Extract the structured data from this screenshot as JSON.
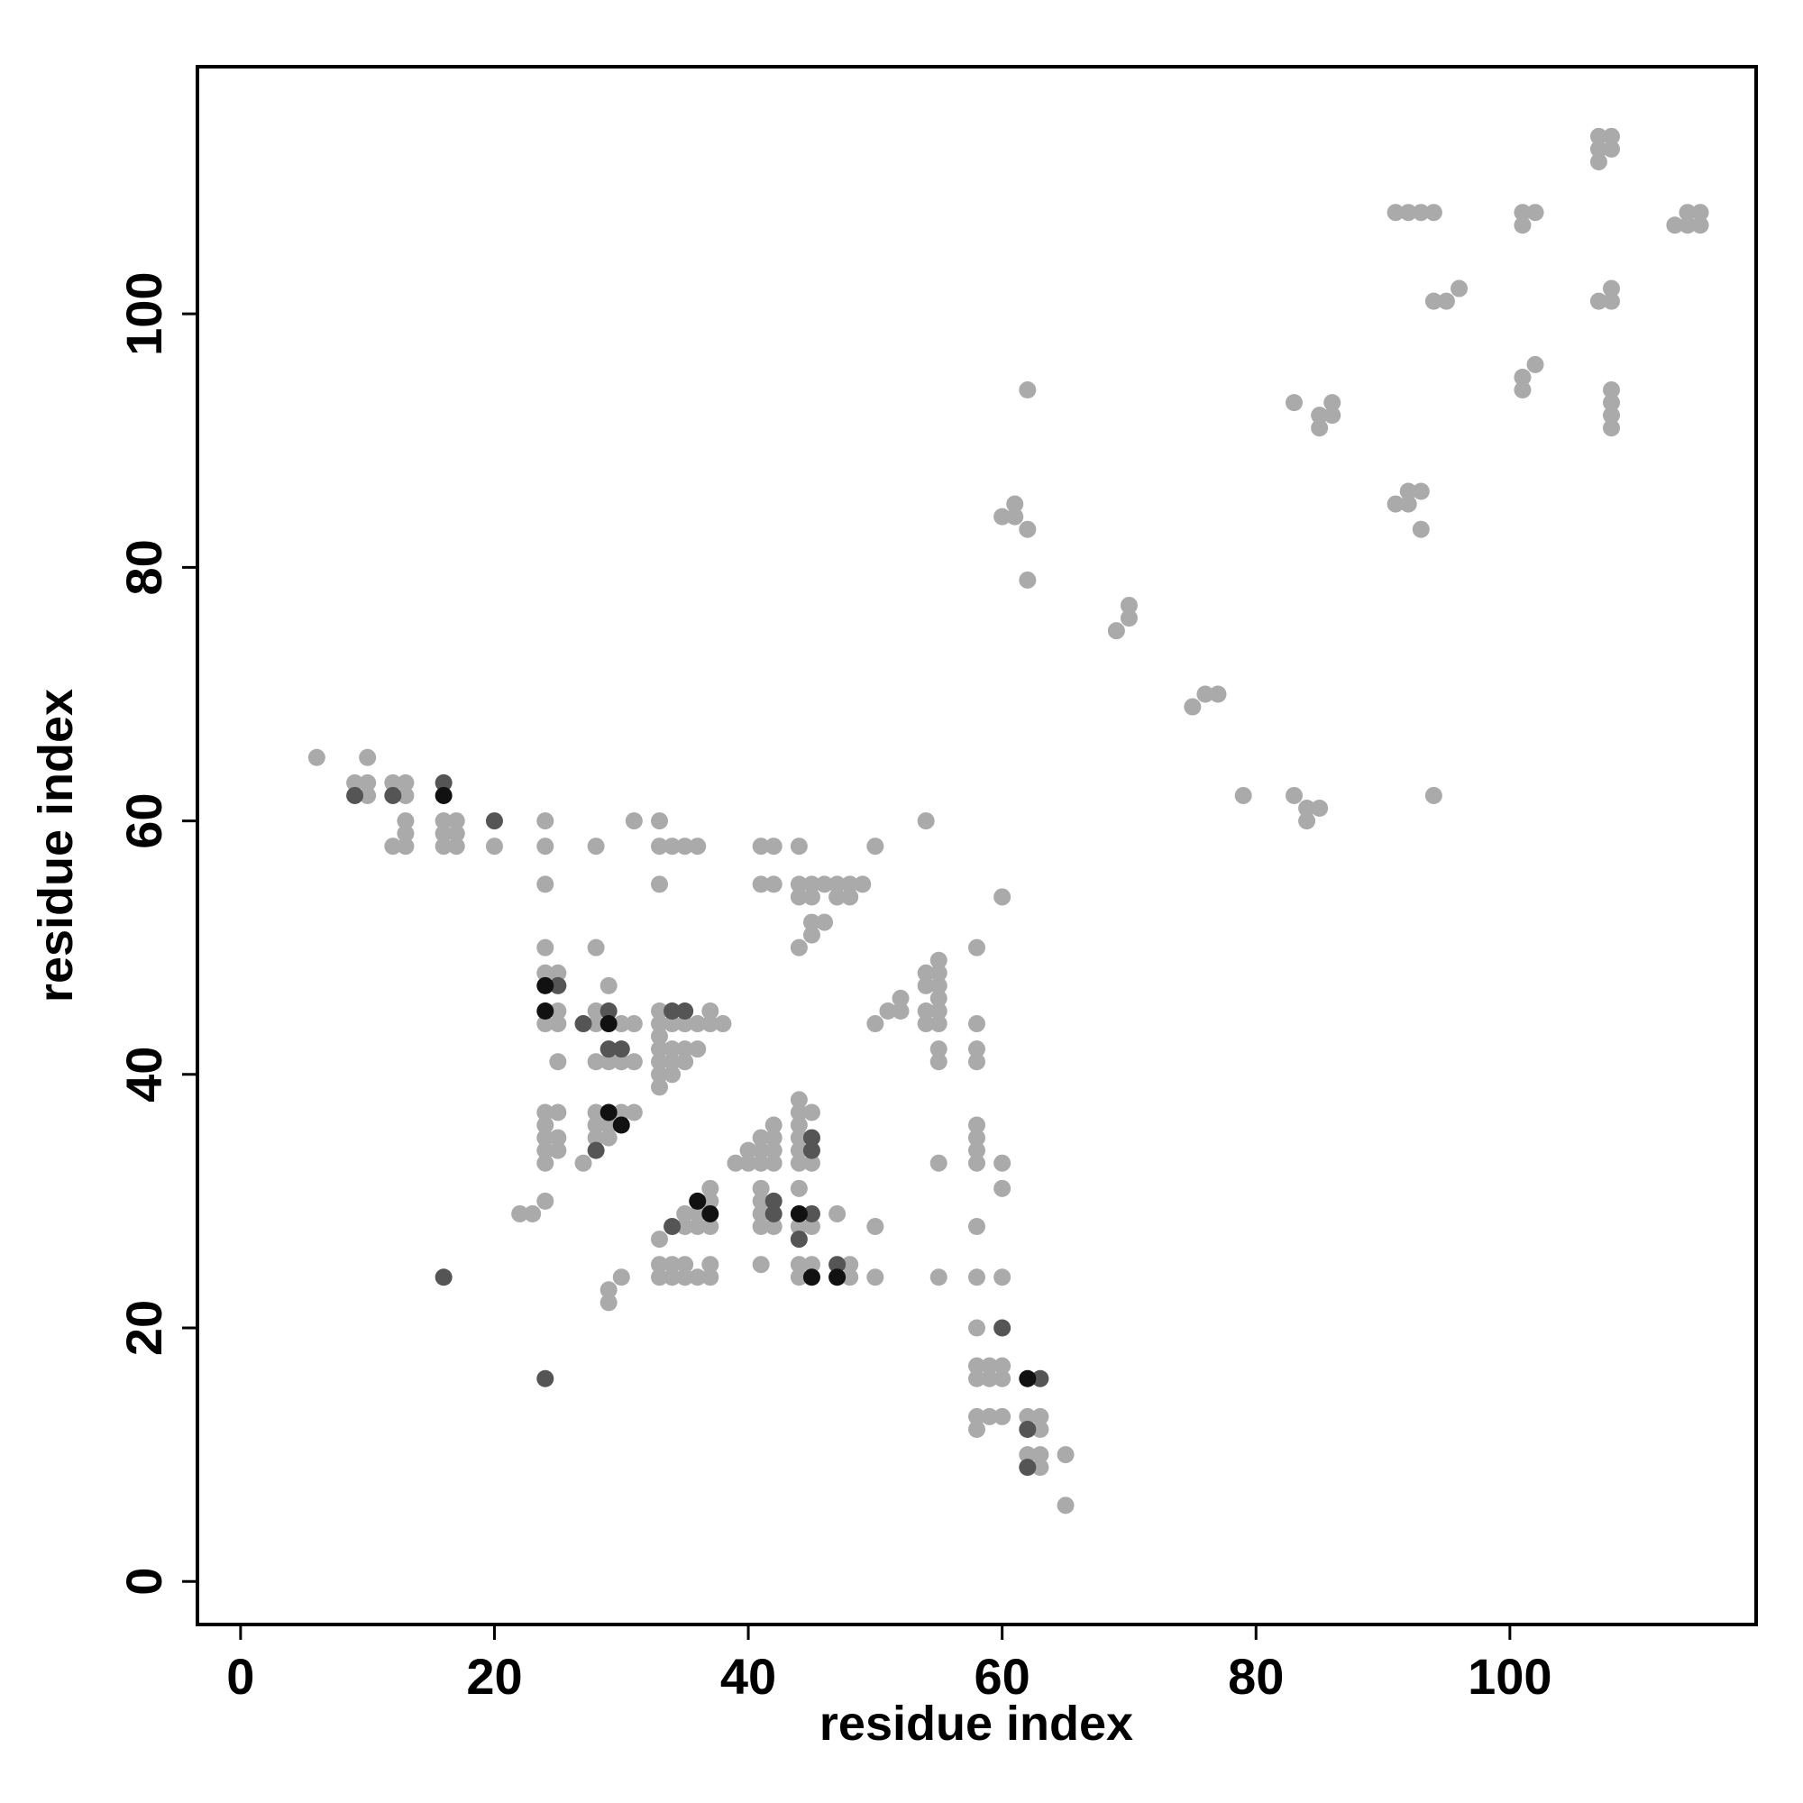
{
  "chart_data": {
    "type": "scatter",
    "xlabel": "residue index",
    "ylabel": "residue index",
    "xlim": [
      -3.4,
      119.4
    ],
    "ylim": [
      -3.4,
      119.5
    ],
    "xticks": [
      0,
      20,
      40,
      60,
      80,
      100
    ],
    "yticks": [
      0,
      20,
      40,
      60,
      80,
      100
    ],
    "series": [
      {
        "color": "#aaaaaa",
        "x": [
          6,
          9,
          10,
          10,
          10,
          12,
          13,
          13,
          12,
          13,
          13,
          13,
          16,
          16,
          16,
          17,
          17,
          17,
          20,
          24,
          24,
          24,
          24,
          24,
          25,
          24,
          25,
          25,
          25,
          24,
          24,
          24,
          24,
          24,
          25,
          25,
          25,
          24,
          22,
          23,
          28,
          28,
          28,
          28,
          28,
          28,
          28,
          28,
          29,
          29,
          30,
          31,
          30,
          27,
          29,
          29,
          30,
          31,
          31,
          29,
          29,
          30,
          31,
          33,
          33,
          34,
          35,
          36,
          33,
          33,
          33,
          33,
          33,
          33,
          33,
          33,
          34,
          34,
          34,
          34,
          35,
          35,
          36,
          37,
          37,
          38,
          36,
          35,
          33,
          33,
          33,
          34,
          34,
          35,
          35,
          36,
          37,
          37,
          35,
          36,
          36,
          37,
          37,
          37,
          35,
          39,
          40,
          40,
          41,
          41,
          41,
          42,
          42,
          42,
          42,
          41,
          41,
          41,
          41,
          42,
          41,
          41,
          42,
          41,
          42,
          44,
          44,
          44,
          45,
          45,
          46,
          47,
          47,
          48,
          48,
          49,
          45,
          46,
          45,
          44,
          44,
          44,
          44,
          44,
          44,
          44,
          45,
          45,
          44,
          44,
          45,
          44,
          45,
          44,
          47,
          47,
          48,
          48,
          50,
          50,
          50,
          50,
          51,
          52,
          52,
          54,
          54,
          54,
          54,
          54,
          55,
          55,
          55,
          55,
          55,
          55,
          55,
          55,
          55,
          55,
          58,
          58,
          58,
          58,
          58,
          58,
          58,
          58,
          58,
          58,
          58,
          58,
          58,
          58,
          58,
          59,
          59,
          59,
          60,
          60,
          60,
          60,
          60,
          60,
          60,
          62,
          62,
          63,
          63,
          63,
          63,
          65,
          65,
          60,
          61,
          61,
          62,
          62,
          62,
          69,
          70,
          70,
          75,
          76,
          77,
          79,
          83,
          83,
          84,
          84,
          85,
          85,
          85,
          86,
          86,
          91,
          92,
          93,
          94,
          91,
          92,
          92,
          93,
          93,
          94,
          95,
          96,
          94,
          101,
          101,
          102,
          101,
          101,
          102,
          107,
          108,
          107,
          108,
          107,
          107,
          108,
          108,
          108,
          108,
          108,
          108,
          113,
          114,
          114,
          115,
          115
        ],
        "y": [
          65,
          63,
          63,
          62,
          65,
          63,
          63,
          62,
          58,
          58,
          59,
          60,
          60,
          59,
          58,
          60,
          59,
          58,
          58,
          60,
          58,
          55,
          50,
          48,
          48,
          44,
          45,
          44,
          41,
          37,
          36,
          35,
          34,
          33,
          37,
          35,
          34,
          30,
          29,
          29,
          58,
          50,
          45,
          44,
          41,
          37,
          36,
          35,
          47,
          41,
          41,
          41,
          44,
          33,
          35,
          36,
          37,
          37,
          44,
          23,
          22,
          24,
          60,
          60,
          58,
          58,
          58,
          58,
          55,
          45,
          44,
          43,
          42,
          41,
          40,
          39,
          44,
          42,
          41,
          40,
          44,
          42,
          44,
          45,
          44,
          44,
          42,
          41,
          27,
          25,
          24,
          25,
          24,
          25,
          24,
          24,
          25,
          24,
          29,
          29,
          28,
          28,
          31,
          30,
          28,
          33,
          34,
          33,
          35,
          34,
          33,
          36,
          35,
          34,
          33,
          31,
          30,
          29,
          28,
          28,
          25,
          58,
          58,
          55,
          55,
          58,
          55,
          54,
          55,
          54,
          55,
          55,
          54,
          55,
          54,
          55,
          52,
          52,
          51,
          50,
          38,
          37,
          36,
          35,
          34,
          33,
          37,
          33,
          31,
          28,
          28,
          25,
          25,
          24,
          29,
          24,
          25,
          24,
          28,
          24,
          58,
          44,
          45,
          46,
          45,
          60,
          48,
          47,
          45,
          44,
          49,
          48,
          47,
          46,
          45,
          44,
          42,
          41,
          33,
          24,
          50,
          44,
          42,
          41,
          36,
          35,
          34,
          33,
          28,
          24,
          20,
          17,
          16,
          13,
          12,
          17,
          16,
          13,
          17,
          16,
          13,
          24,
          33,
          31,
          54,
          13,
          10,
          13,
          12,
          10,
          9,
          10,
          6,
          84,
          85,
          84,
          83,
          79,
          94,
          75,
          77,
          76,
          69,
          70,
          70,
          62,
          93,
          62,
          61,
          60,
          61,
          92,
          91,
          93,
          92,
          108,
          108,
          108,
          108,
          85,
          86,
          85,
          86,
          83,
          101,
          101,
          102,
          62,
          108,
          107,
          108,
          95,
          94,
          96,
          114,
          114,
          113,
          113,
          112,
          101,
          102,
          101,
          94,
          93,
          92,
          91,
          107,
          108,
          107,
          108,
          107
        ]
      },
      {
        "color": "#555555",
        "x": [
          9,
          12,
          16,
          20,
          16,
          24,
          25,
          27,
          28,
          29,
          29,
          30,
          34,
          34,
          35,
          42,
          42,
          44,
          45,
          45,
          45,
          47,
          60,
          62,
          62,
          63
        ],
        "y": [
          62,
          62,
          63,
          60,
          24,
          16,
          47,
          44,
          34,
          45,
          42,
          42,
          28,
          45,
          45,
          30,
          29,
          27,
          35,
          34,
          29,
          25,
          20,
          12,
          9,
          16
        ]
      },
      {
        "color": "#111111",
        "x": [
          16,
          24,
          24,
          29,
          29,
          30,
          36,
          37,
          44,
          45,
          47,
          62
        ],
        "y": [
          62,
          47,
          45,
          44,
          37,
          36,
          30,
          29,
          29,
          24,
          24,
          16
        ]
      }
    ]
  }
}
